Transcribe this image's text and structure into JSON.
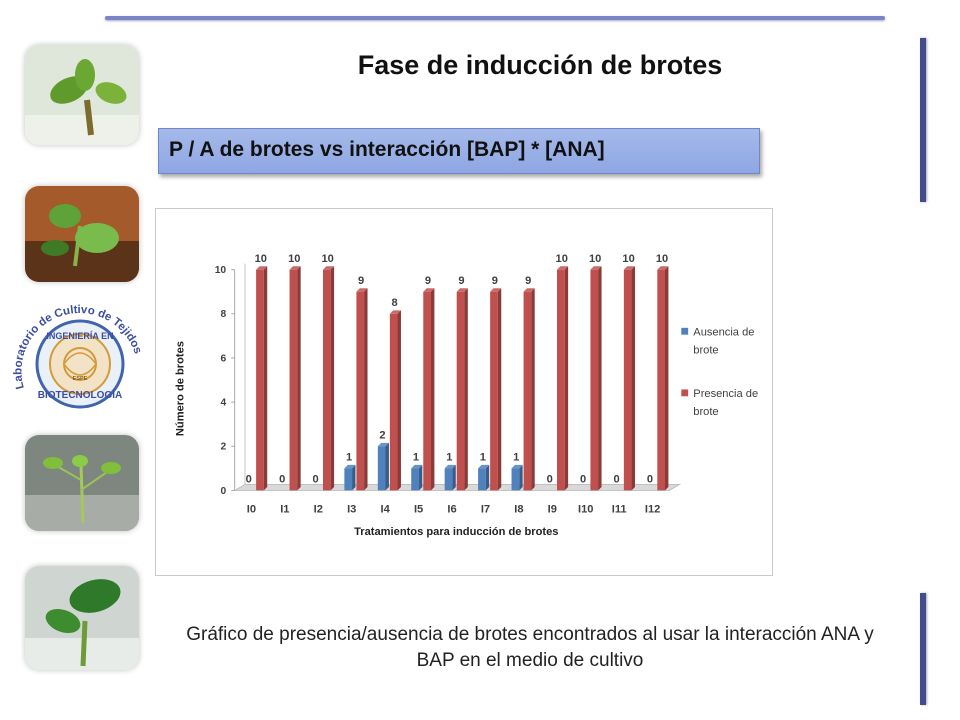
{
  "slide": {
    "title": "Fase de inducción de brotes",
    "subtitle": "P / A de brotes vs interacción  [BAP] * [ANA]",
    "caption": "Gráfico de presencia/ausencia  de brotes encontrados  al usar la interacción ANA y BAP en el medio de cultivo"
  },
  "logo": {
    "arc_text": "Laboratorio de Cultivo de Tejidos",
    "top_text": "INGENIERÍA EN",
    "bottom_text": "BIOTECNOLOGÍA",
    "seal_text": "ESPE"
  },
  "colors": {
    "accent_rule": "#7b83c9",
    "side_bar": "#444b8c",
    "subtitle_bg": "#97ade6",
    "ausencia": "#4f81bd",
    "presencia": "#c0504d"
  },
  "chart_data": {
    "type": "bar",
    "xlabel": "Tratamientos para inducción de brotes",
    "ylabel": "Número de brotes",
    "ylim": [
      0,
      10
    ],
    "yticks": [
      0,
      2,
      4,
      6,
      8,
      10
    ],
    "grid": false,
    "legend_position": "right",
    "categories": [
      "I0",
      "I1",
      "I2",
      "I3",
      "I4",
      "I5",
      "I6",
      "I7",
      "I8",
      "I9",
      "I10",
      "I11",
      "I12"
    ],
    "series": [
      {
        "name": "Ausencia de brote",
        "color": "#4f81bd",
        "values": [
          0,
          0,
          0,
          1,
          2,
          1,
          1,
          1,
          1,
          0,
          0,
          0,
          0
        ]
      },
      {
        "name": "Presencia de brote",
        "color": "#c0504d",
        "values": [
          10,
          10,
          10,
          9,
          8,
          9,
          9,
          9,
          9,
          10,
          10,
          10,
          10
        ]
      }
    ]
  }
}
